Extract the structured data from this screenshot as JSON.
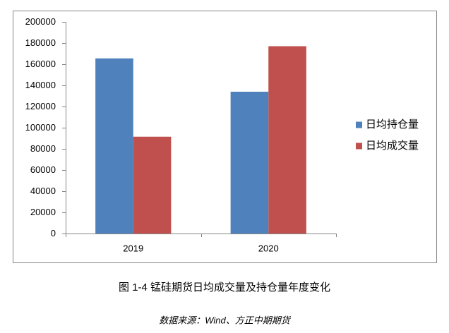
{
  "chart_data": {
    "type": "bar",
    "title": "图 1-4 锰硅期货日均成交量及持仓量年度变化",
    "source": "数据来源：Wind、方正中期期货",
    "categories": [
      "2019",
      "2020"
    ],
    "series": [
      {
        "name": "日均持仓量",
        "color": "#4f81bd",
        "values": [
          165500,
          134000
        ]
      },
      {
        "name": "日均成交量",
        "color": "#c0504d",
        "values": [
          91500,
          177000
        ]
      }
    ],
    "ylim": [
      0,
      200000
    ],
    "yticks": [
      0,
      20000,
      40000,
      60000,
      80000,
      100000,
      120000,
      140000,
      160000,
      180000,
      200000
    ],
    "grid": false,
    "legend": "right"
  }
}
